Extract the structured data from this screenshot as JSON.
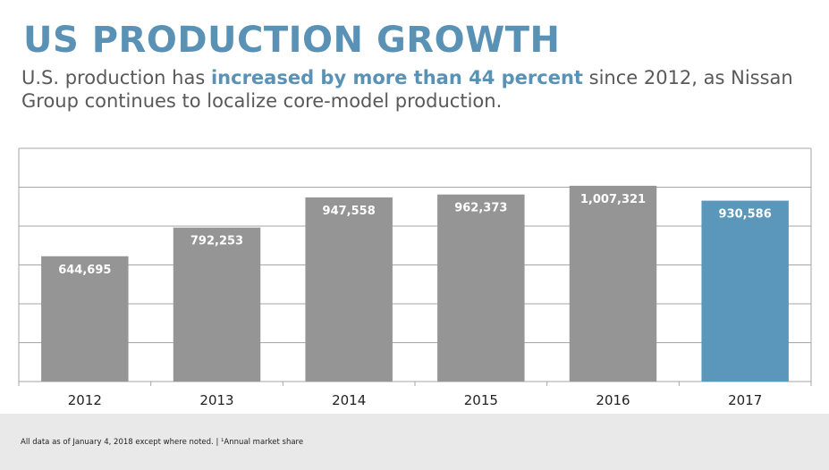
{
  "header": {
    "title": "US PRODUCTION GROWTH",
    "subtitle_before": "U.S. production has ",
    "subtitle_highlight": "increased by more than 44 percent",
    "subtitle_after": " since 2012, as Nissan Group continues to localize core-model production."
  },
  "chart_data": {
    "type": "bar",
    "categories": [
      "2012",
      "2013",
      "2014",
      "2015",
      "2016",
      "2017"
    ],
    "values": [
      644695,
      792253,
      947558,
      962373,
      1007321,
      930586
    ],
    "data_labels": [
      "644,695",
      "792,253",
      "947,558",
      "962,373",
      "1,007,321",
      "930,586"
    ],
    "ylim": [
      0,
      1200000
    ],
    "grid": true,
    "colors": {
      "default": "#959595",
      "highlight": "#5b96bb"
    },
    "highlight_category": "2017"
  },
  "footer": {
    "note": "All data as of January 4, 2018 except where noted. | ¹Annual market share"
  }
}
